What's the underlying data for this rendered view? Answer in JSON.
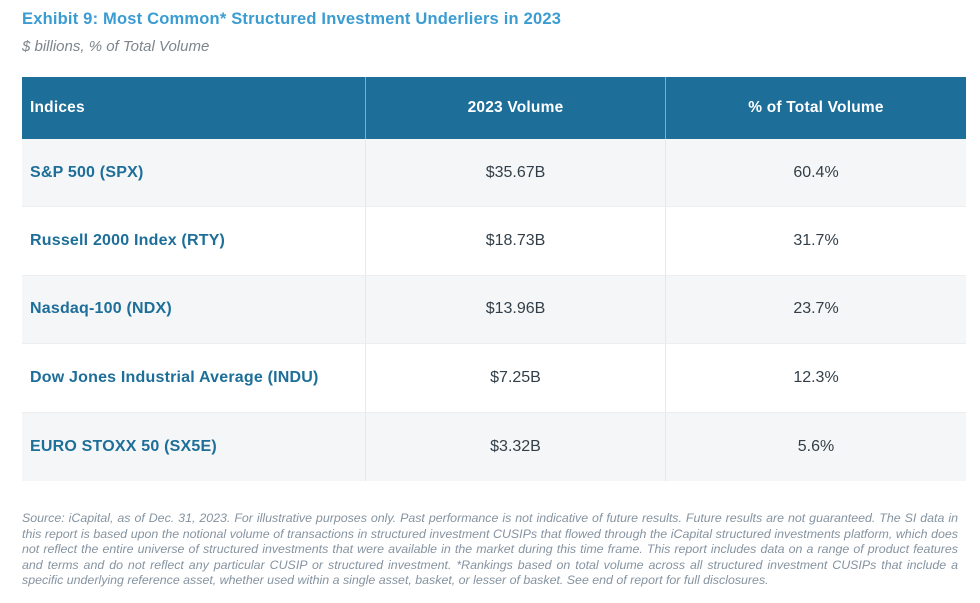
{
  "header": {
    "title": "Exhibit 9: Most Common* Structured Investment Underliers in 2023",
    "subtitle": "$ billions, % of Total Volume"
  },
  "table": {
    "columns": [
      "Indices",
      "2023 Volume",
      "% of Total Volume"
    ],
    "rows": [
      {
        "index": "S&P 500 (SPX)",
        "volume": "$35.67B",
        "pct_of_total": "60.4%"
      },
      {
        "index": "Russell 2000 Index (RTY)",
        "volume": "$18.73B",
        "pct_of_total": "31.7%"
      },
      {
        "index": "Nasdaq-100 (NDX)",
        "volume": "$13.96B",
        "pct_of_total": "23.7%"
      },
      {
        "index": "Dow Jones Industrial Average (INDU)",
        "volume": "$7.25B",
        "pct_of_total": "12.3%"
      },
      {
        "index": "EURO STOXX 50 (SX5E)",
        "volume": "$3.32B",
        "pct_of_total": "5.6%"
      }
    ]
  },
  "footnote": "Source: iCapital, as of Dec. 31, 2023. For illustrative purposes only. Past performance is not indicative of future results. Future results are not guaranteed. The SI data in this report is based upon the notional volume of transactions in structured investment CUSIPs that flowed through the iCapital structured investments platform, which does not reflect the entire universe of structured investments that were available in the market during this time frame. This report includes data on a range of product features and terms and do not reflect any particular CUSIP or structured investment. *Rankings based on total volume across all structured investment CUSIPs that include a specific underlying reference asset, whether used within a single asset, basket, or lesser of basket. See end of report for full disclosures.",
  "colors": {
    "accent_blue": "#3b9cd2",
    "header_teal": "#1d6e99",
    "row_stripe": "#f5f6f8",
    "body_text": "#333f48",
    "muted_text": "#8593a0"
  },
  "chart_data": {
    "type": "table",
    "title": "Exhibit 9: Most Common* Structured Investment Underliers in 2023",
    "subtitle": "$ billions, % of Total Volume",
    "columns": [
      "Indices",
      "2023 Volume",
      "% of Total Volume"
    ],
    "categories": [
      "S&P 500 (SPX)",
      "Russell 2000 Index (RTY)",
      "Nasdaq-100 (NDX)",
      "Dow Jones Industrial Average (INDU)",
      "EURO STOXX 50 (SX5E)"
    ],
    "series": [
      {
        "name": "2023 Volume ($B)",
        "values": [
          35.67,
          18.73,
          13.96,
          7.25,
          3.32
        ]
      },
      {
        "name": "% of Total Volume",
        "values": [
          60.4,
          31.7,
          23.7,
          12.3,
          5.6
        ]
      }
    ],
    "layout": {
      "header_background": "#1d6e99",
      "striped_rows": true,
      "legend_position": "none"
    }
  }
}
